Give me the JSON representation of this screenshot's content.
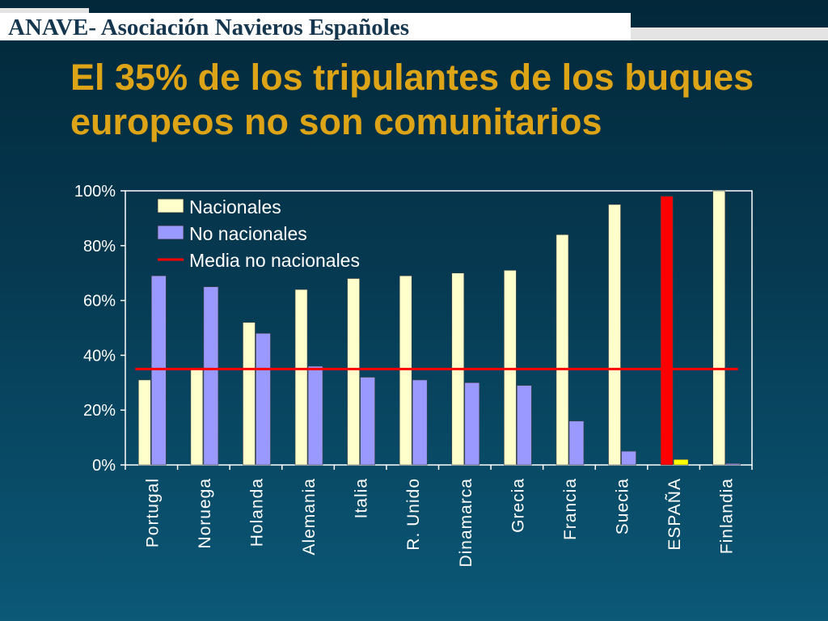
{
  "header": {
    "organization": "ANAVE- Asociación Navieros Españoles"
  },
  "slide": {
    "title": "El 35% de los tripulantes de los buques europeos no son comunitarios"
  },
  "colors": {
    "background_top": "#02283a",
    "title": "#dca416",
    "nacionales": "#ffffcc",
    "no_nacionales": "#9999ff",
    "media": "#ff0000",
    "highlight_nacionales": "#ff0000",
    "highlight_no_nacionales": "#ffff00"
  },
  "chart_data": {
    "type": "bar",
    "title": "",
    "xlabel": "",
    "ylabel": "",
    "ylim": [
      0,
      100
    ],
    "y_ticks": [
      "0%",
      "20%",
      "40%",
      "60%",
      "80%",
      "100%"
    ],
    "categories": [
      "Portugal",
      "Noruega",
      "Holanda",
      "Alemania",
      "Italia",
      "R. Unido",
      "Dinamarca",
      "Grecia",
      "Francia",
      "Suecia",
      "ESPAÑA",
      "Finlandia"
    ],
    "series": [
      {
        "name": "Nacionales",
        "values": [
          31,
          35,
          52,
          64,
          68,
          69,
          70,
          71,
          84,
          95,
          98,
          100
        ]
      },
      {
        "name": "No nacionales",
        "values": [
          69,
          65,
          48,
          36,
          32,
          31,
          30,
          29,
          16,
          5,
          2,
          0.5
        ]
      }
    ],
    "reference_line": {
      "name": "Media no nacionales",
      "value": 35
    },
    "highlight_category": "ESPAÑA",
    "legend_position": "top-left",
    "grid": false
  }
}
